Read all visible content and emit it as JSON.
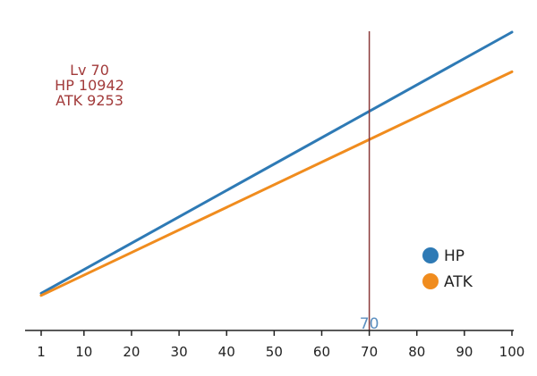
{
  "chart_data": {
    "type": "line",
    "title": "",
    "xlabel": "",
    "ylabel": "",
    "x": [
      1,
      100
    ],
    "xlim": [
      1,
      100
    ],
    "x_ticks": [
      1,
      10,
      20,
      30,
      40,
      50,
      60,
      70,
      80,
      90,
      100
    ],
    "x_tick_labels": [
      "1",
      "10",
      "20",
      "30",
      "40",
      "50",
      "60",
      "70",
      "80",
      "90",
      "100"
    ],
    "grid": false,
    "legend_position": "bottom-right",
    "series": [
      {
        "name": "HP",
        "color": "#2e7ab5",
        "values": [
          860,
          15500
        ]
      },
      {
        "name": "ATK",
        "color": "#f08c1e",
        "values": [
          740,
          13280
        ]
      }
    ],
    "marker": {
      "x": 70,
      "label": "70",
      "line_color": "#8b3a3a",
      "label_color": "#5b8fbf"
    },
    "annotation": {
      "color": "#a23b3b",
      "lines": [
        "Lv 70",
        "HP 10942",
        "ATK 9253"
      ]
    }
  }
}
